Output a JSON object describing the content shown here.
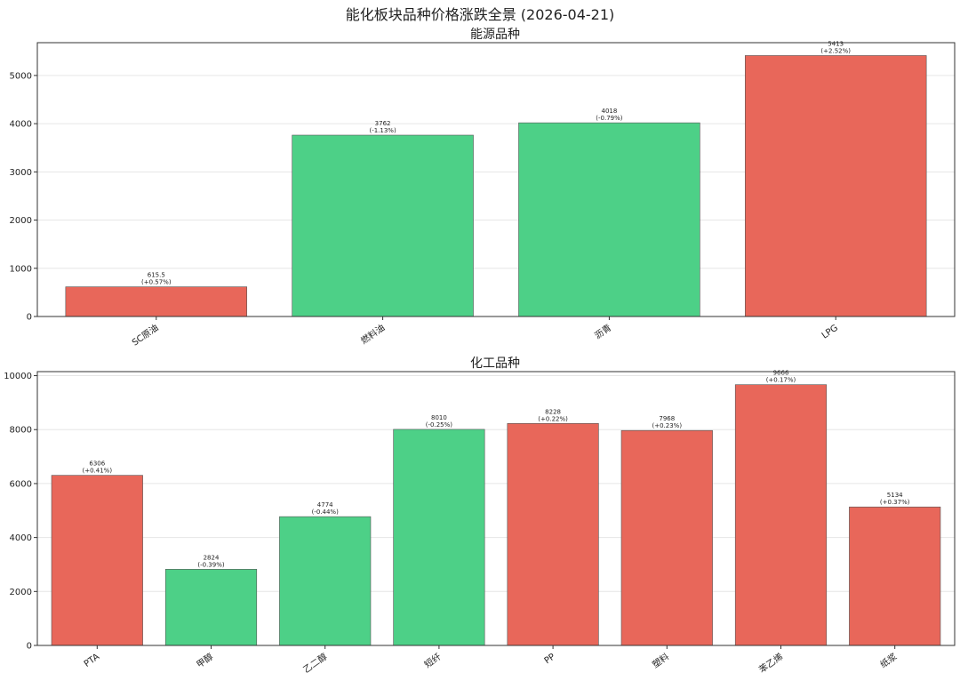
{
  "figure_title": "能化板块品种价格涨跌全景 (2026-04-21)",
  "colors": {
    "up": "#E8675A",
    "down": "#4DD087"
  },
  "chart_data": [
    {
      "type": "bar",
      "title": "能源品种",
      "xlabel": "",
      "ylabel": "",
      "ylim": [
        0,
        5680
      ],
      "yticks": [
        0,
        1000,
        2000,
        3000,
        4000,
        5000
      ],
      "grid": true,
      "categories": [
        "SC原油",
        "燃料油",
        "沥青",
        "LPG"
      ],
      "values": [
        615.5,
        3762,
        4018,
        5413
      ],
      "changes": [
        "+0.57%",
        "-1.13%",
        "-0.79%",
        "+2.52%"
      ],
      "value_labels": [
        "615.5",
        "3762",
        "4018",
        "5413"
      ],
      "change_labels": [
        "(+0.57%)",
        "(-1.13%)",
        "(-0.79%)",
        "(+2.52%)"
      ]
    },
    {
      "type": "bar",
      "title": "化工品种",
      "xlabel": "",
      "ylabel": "",
      "ylim": [
        0,
        10150
      ],
      "yticks": [
        0,
        2000,
        4000,
        6000,
        8000,
        10000
      ],
      "grid": true,
      "categories": [
        "PTA",
        "甲醇",
        "乙二醇",
        "短纤",
        "PP",
        "塑料",
        "苯乙烯",
        "纸浆"
      ],
      "values": [
        6306,
        2824,
        4774,
        8010,
        8228,
        7968,
        9666,
        5134
      ],
      "changes": [
        "+0.41%",
        "-0.39%",
        "-0.44%",
        "-0.25%",
        "+0.22%",
        "+0.23%",
        "+0.17%",
        "+0.37%"
      ],
      "value_labels": [
        "6306",
        "2824",
        "4774",
        "8010",
        "8228",
        "7968",
        "9666",
        "5134"
      ],
      "change_labels": [
        "(+0.41%)",
        "(-0.39%)",
        "(-0.44%)",
        "(-0.25%)",
        "(+0.22%)",
        "(+0.23%)",
        "(+0.17%)",
        "(+0.37%)"
      ]
    }
  ]
}
